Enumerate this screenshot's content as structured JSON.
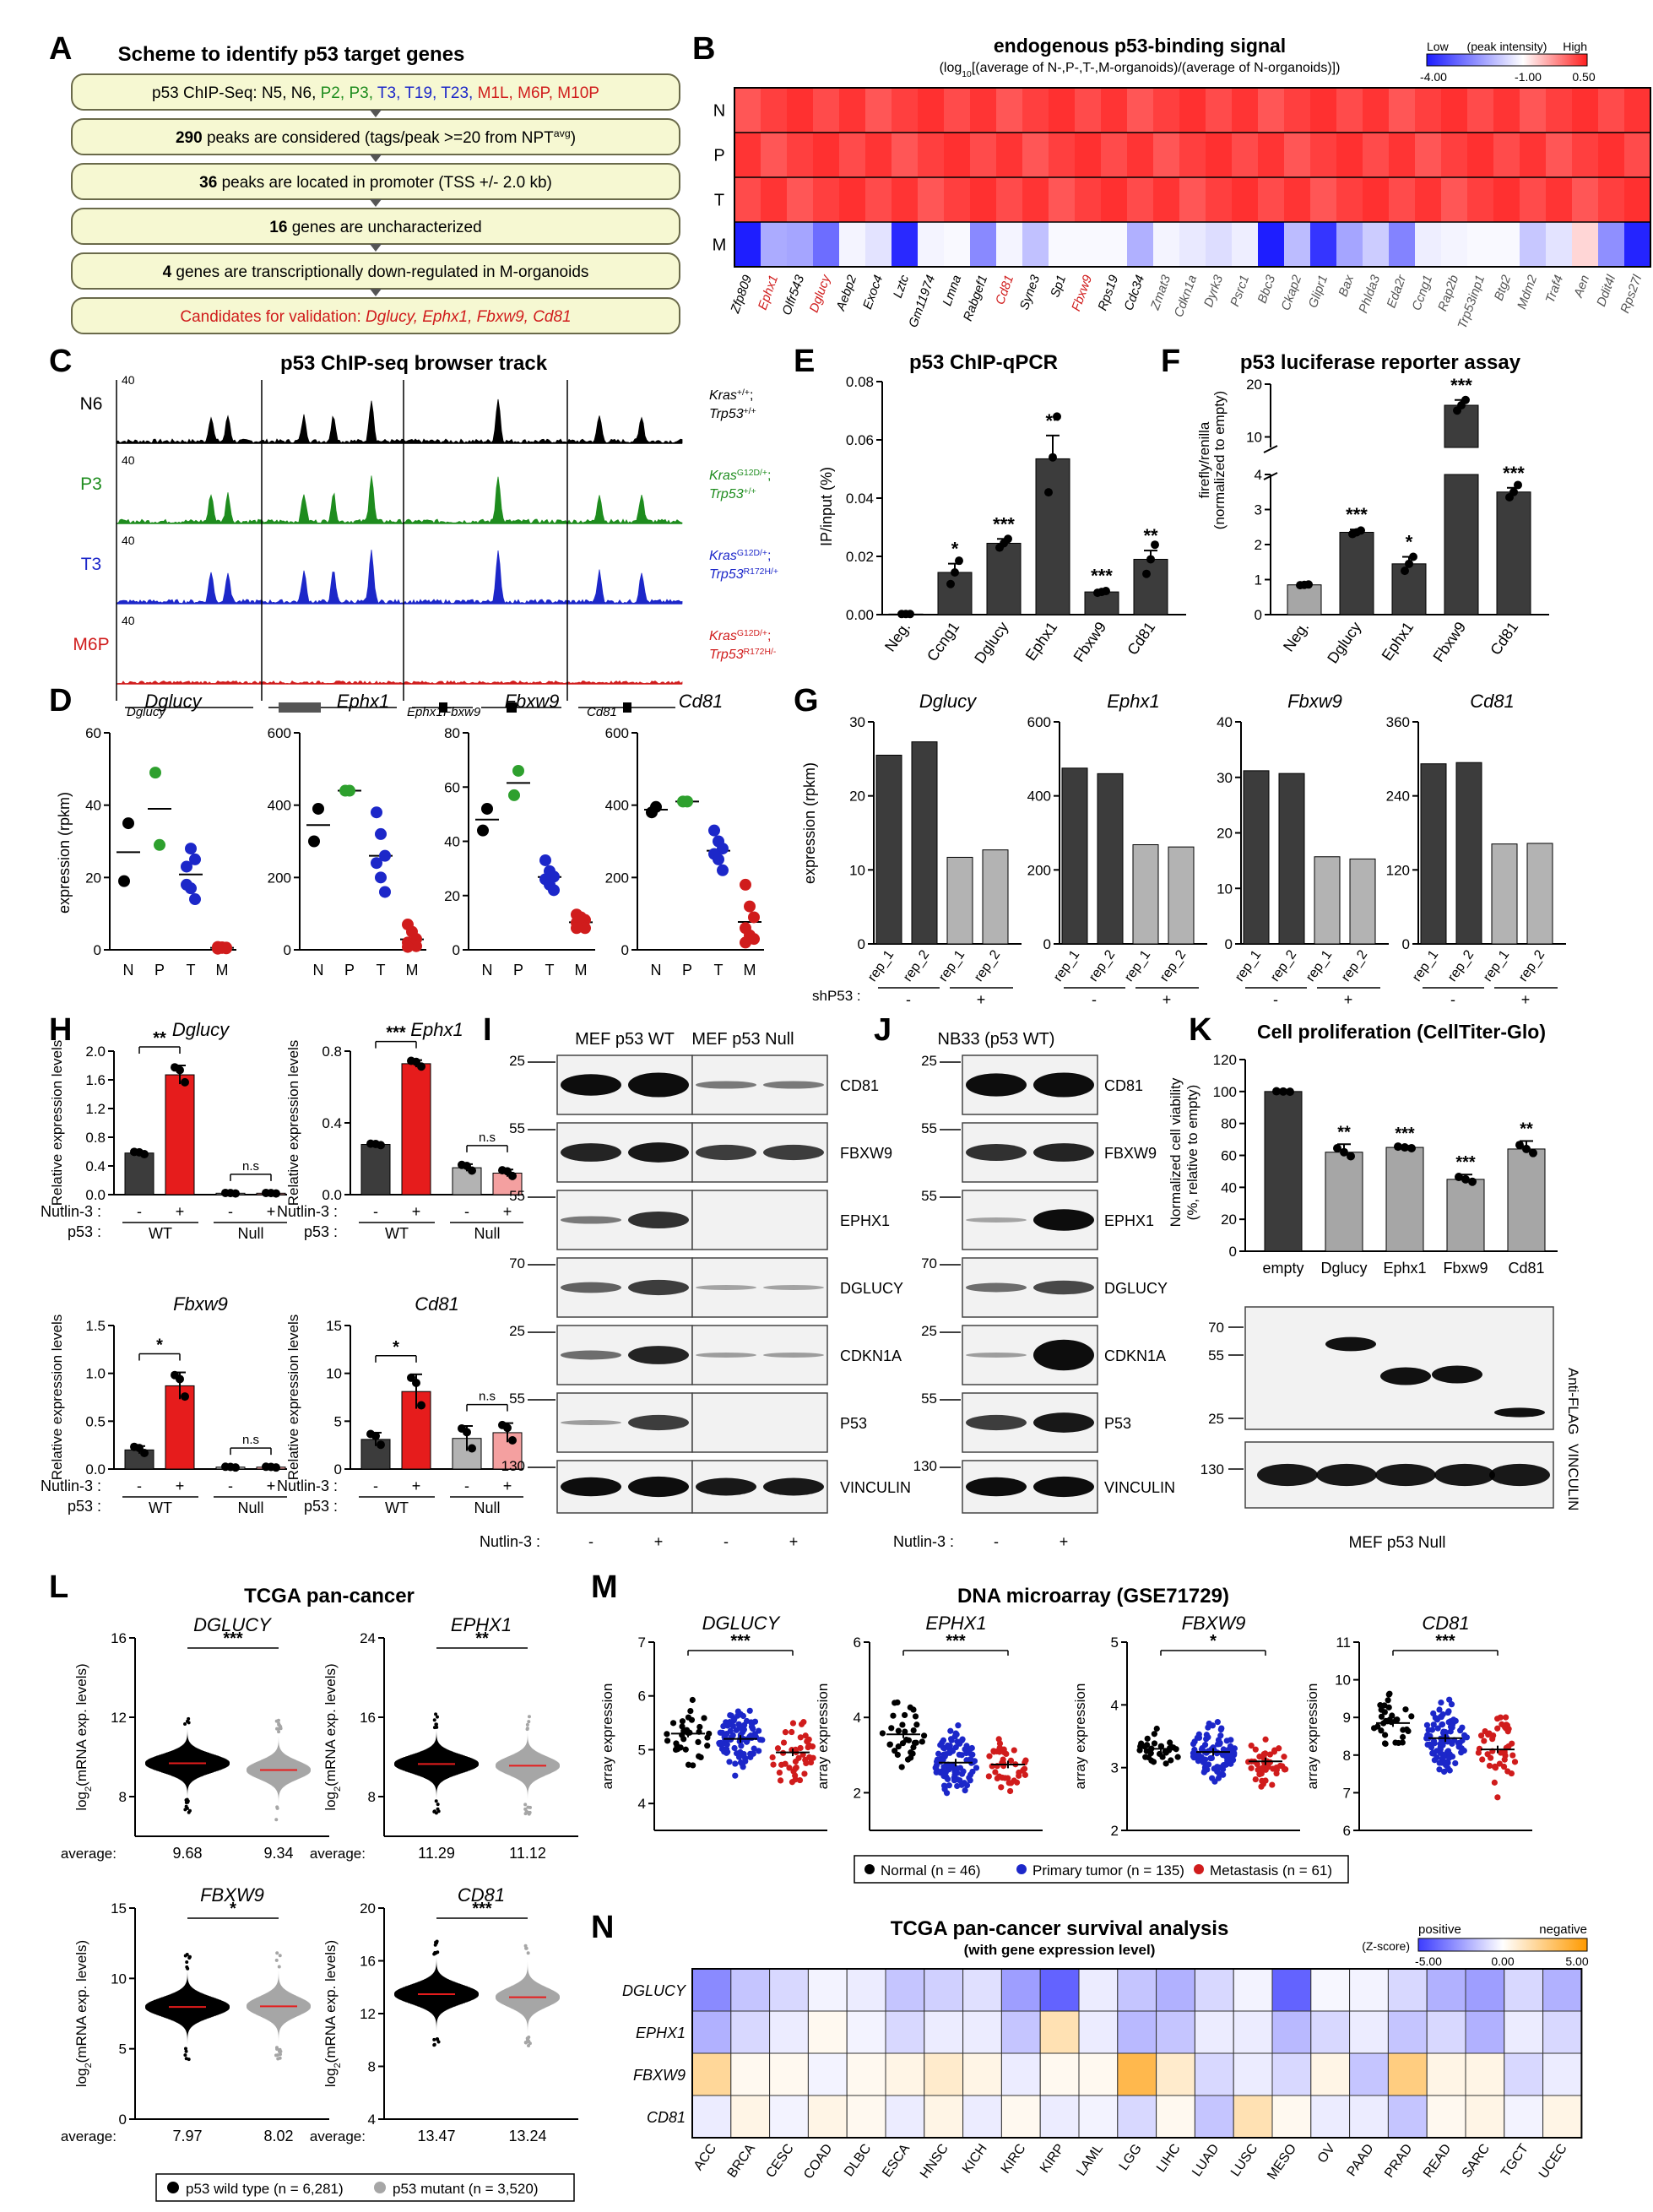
{
  "panelA": {
    "letter": "A",
    "title": "Scheme to identify p53 target genes",
    "row1": {
      "pre": "p53 ChIP-Seq: N5, N6,",
      "samples": [
        {
          "t": " P2,",
          "c": "#1e8c1e"
        },
        {
          "t": " P3,",
          "c": "#1e8c1e"
        },
        {
          "t": " T3,",
          "c": "#1c27c9"
        },
        {
          "t": " T19,",
          "c": "#1c27c9"
        },
        {
          "t": " T23,",
          "c": "#1c27c9"
        },
        {
          "t": " M1L,",
          "c": "#d01c1c"
        },
        {
          "t": " M6P,",
          "c": "#d01c1c"
        },
        {
          "t": " M10P",
          "c": "#d01c1c"
        }
      ]
    },
    "row2": {
      "num": "290",
      "text": " peaks are considered (tags/peak >=20 from NPT",
      "sup": "avg",
      "end": ")"
    },
    "row3": {
      "num": "36",
      "text": " peaks are located in promoter (TSS +/- 2.0 kb)"
    },
    "row4": {
      "num": "16",
      "text": " genes are uncharacterized"
    },
    "row5": {
      "num": "4",
      "text": " genes are transcriptionally down-regulated in M-organoids"
    },
    "row6": {
      "pre": "Candidates for validation: ",
      "genes": "Dglucy, Ephx1, Fbxw9, Cd81"
    }
  },
  "panelB": {
    "letter": "B",
    "title": "endogenous p53-binding signal",
    "subtitle_pre": "(log",
    "subtitle_sub": "10",
    "subtitle_post": "[(average of N-,P-,T-,M-organoids)/(average of N-organoids)])",
    "legend": {
      "low": "Low",
      "mid": "(peak intensity)",
      "high": "High",
      "ticks": [
        "-4.00",
        "-1.00",
        "0.50"
      ]
    },
    "rows": [
      "N",
      "P",
      "T",
      "M"
    ],
    "genes": [
      "Zfp809",
      "Ephx1",
      "Olfr543",
      "Dglucy",
      "Aebp2",
      "Exoc4",
      "Lztc",
      "Gm11974",
      "Lmna",
      "Rabgef1",
      "Cd81",
      "Syne3",
      "Sp1",
      "Fbxw9",
      "Rps19",
      "Cdc34",
      "Zmat3",
      "Cdkn1a",
      "Dyrk3",
      "Psrc1",
      "Bbc3",
      "Ckap2",
      "Glipr1",
      "Bax",
      "Phlda3",
      "Eda2r",
      "Ccng1",
      "Rap2b",
      "Trp53inp1",
      "Btg2",
      "Mdm2",
      "Traf4",
      "Aen",
      "Ddit4l",
      "Rps27l"
    ],
    "gene_colors": [
      "#000000",
      "#d01c1c",
      "#000000",
      "#d01c1c",
      "#000000",
      "#000000",
      "#000000",
      "#000000",
      "#000000",
      "#000000",
      "#d01c1c",
      "#000000",
      "#000000",
      "#d01c1c",
      "#000000",
      "#000000",
      "#555555",
      "#555555",
      "#555555",
      "#555555",
      "#555555",
      "#555555",
      "#555555",
      "#555555",
      "#555555",
      "#555555",
      "#555555",
      "#555555",
      "#555555",
      "#555555",
      "#555555",
      "#555555",
      "#555555",
      "#555555",
      "#555555"
    ],
    "M_values": [
      -4.0,
      -1.5,
      -1.6,
      -2.6,
      -0.2,
      -0.5,
      -3.8,
      -0.2,
      -0.1,
      -2.1,
      -0.2,
      -1.1,
      -0.1,
      -0.1,
      -0.1,
      -1.4,
      -0.2,
      -0.4,
      -0.6,
      -0.3,
      -4.0,
      -1.2,
      -3.6,
      -1.6,
      -0.9,
      -2.2,
      -0.3,
      -0.2,
      -0.1,
      -0.1,
      -1.0,
      -0.5,
      0.1,
      -2.0,
      -3.9
    ]
  },
  "panelC": {
    "letter": "C",
    "title": "p53 ChIP-seq browser track",
    "tracks": [
      {
        "name": "N6",
        "color": "#000000",
        "l1": "Kras",
        "l1s": "+/+",
        "l1e": ";",
        "l2": "Trp53",
        "l2s": "+/+"
      },
      {
        "name": "P3",
        "color": "#1e8c1e",
        "l1": "Kras",
        "l1s": "G12D/+",
        "l1e": ";",
        "l2": "Trp53",
        "l2s": "+/+"
      },
      {
        "name": "T3",
        "color": "#1c27c9",
        "l1": "Kras",
        "l1s": "G12D/+",
        "l1e": ";",
        "l2": "Trp53",
        "l2s": "R172H/+"
      },
      {
        "name": "M6P",
        "color": "#d01c1c",
        "l1": "Kras",
        "l1s": "G12D/+",
        "l1e": ";",
        "l2": "Trp53",
        "l2s": "R172H/-"
      }
    ],
    "scale": "40",
    "genes": [
      "Dglucy",
      "Ephx1",
      "Fbxw9",
      "Cd81"
    ]
  },
  "panelD": {
    "letter": "D",
    "ylabel": "expression (rpkm)",
    "groups": [
      "N",
      "P",
      "T",
      "M"
    ],
    "colors": [
      "#000000",
      "#2ea02e",
      "#1c27c9",
      "#d01c1c"
    ],
    "plots": [
      {
        "gene": "Dglucy",
        "ticks": [
          "0",
          "20",
          "40",
          "60"
        ],
        "max": 60,
        "pts": [
          [
            19,
            35
          ],
          [
            49,
            29
          ],
          [
            23,
            28,
            25,
            18,
            17,
            14
          ],
          [
            0.8,
            0.7,
            0.6,
            0.5,
            0.5,
            0.4,
            0.3
          ]
        ]
      },
      {
        "gene": "Ephx1",
        "ticks": [
          "0",
          "200",
          "400",
          "600"
        ],
        "max": 600,
        "pts": [
          [
            300,
            390
          ],
          [
            440,
            440
          ],
          [
            380,
            320,
            260,
            240,
            200,
            160
          ],
          [
            70,
            50,
            30,
            20,
            15,
            10,
            8
          ]
        ]
      },
      {
        "gene": "Fbxw9",
        "ticks": [
          "0",
          "20",
          "40",
          "60",
          "80"
        ],
        "max": 80,
        "pts": [
          [
            44,
            52
          ],
          [
            57,
            66
          ],
          [
            33,
            29,
            27,
            26,
            24,
            22
          ],
          [
            13,
            12,
            11,
            10,
            9,
            8,
            8
          ]
        ]
      },
      {
        "gene": "Cd81",
        "ticks": [
          "0",
          "200",
          "400",
          "600"
        ],
        "max": 600,
        "pts": [
          [
            380,
            395
          ],
          [
            410,
            410
          ],
          [
            330,
            300,
            280,
            265,
            250,
            220
          ],
          [
            180,
            120,
            90,
            60,
            40,
            30,
            20
          ]
        ]
      }
    ]
  },
  "panelE": {
    "letter": "E",
    "title": "p53 ChIP-qPCR",
    "ylabel": "IP/input (%)",
    "ticks": [
      "0.00",
      "0.02",
      "0.04",
      "0.06",
      "0.08"
    ],
    "categories": [
      "Neg.",
      "Ccng1",
      "Dglucy",
      "Ephx1",
      "Fbxw9",
      "Cd81"
    ],
    "values": [
      0.0002,
      0.0145,
      0.0245,
      0.0535,
      0.0078,
      0.019
    ],
    "errors": [
      0.0001,
      0.003,
      0.0015,
      0.008,
      0.0005,
      0.003
    ],
    "sig": [
      "",
      "*",
      "***",
      "**",
      "***",
      "**"
    ],
    "pts": [
      [
        0.0002,
        0.0002,
        0.0002
      ],
      [
        0.0105,
        0.0145,
        0.0185
      ],
      [
        0.023,
        0.0245,
        0.026
      ],
      [
        0.042,
        0.054,
        0.068
      ],
      [
        0.0075,
        0.0078,
        0.0081
      ],
      [
        0.014,
        0.019,
        0.024
      ]
    ]
  },
  "panelF": {
    "letter": "F",
    "title": "p53 luciferase reporter assay",
    "ylabel": "firefly/renilla",
    "ylabel2": "(normalized to empty)",
    "ticks_low": [
      "0",
      "1",
      "2",
      "3",
      "4"
    ],
    "ticks_high": [
      "10",
      "20"
    ],
    "categories": [
      "Neg.",
      "Dglucy",
      "Ephx1",
      "Fbxw9",
      "Cd81"
    ],
    "values": [
      0.85,
      2.35,
      1.45,
      16.0,
      3.5
    ],
    "errors": [
      0.02,
      0.08,
      0.2,
      1.0,
      0.12
    ],
    "sig": [
      "",
      "***",
      "*",
      "***",
      "***"
    ],
    "colors": [
      "#a6a6a6",
      "#3c3c3c",
      "#3c3c3c",
      "#3c3c3c",
      "#3c3c3c"
    ],
    "pts": [
      [
        0.84,
        0.85,
        0.86
      ],
      [
        2.3,
        2.35,
        2.4
      ],
      [
        1.25,
        1.45,
        1.65
      ],
      [
        15,
        16,
        17
      ],
      [
        3.35,
        3.5,
        3.7
      ]
    ]
  },
  "panelG": {
    "letter": "G",
    "ylabel": "expression (rpkm)",
    "xcats": [
      "rep_1",
      "rep_2",
      "rep_1",
      "rep_2"
    ],
    "shlabel": "shP53 :",
    "signs": [
      "-",
      "+"
    ],
    "plots": [
      {
        "gene": "Dglucy",
        "ticks": [
          "0",
          "10",
          "20",
          "30"
        ],
        "max": 30,
        "values": [
          25.5,
          27.3,
          11.7,
          12.7
        ]
      },
      {
        "gene": "Ephx1",
        "ticks": [
          "0",
          "200",
          "400",
          "600"
        ],
        "max": 600,
        "values": [
          475,
          460,
          268,
          262
        ]
      },
      {
        "gene": "Fbxw9",
        "ticks": [
          "0",
          "10",
          "20",
          "30",
          "40"
        ],
        "max": 40,
        "values": [
          31.2,
          30.7,
          15.7,
          15.3
        ]
      },
      {
        "gene": "Cd81",
        "ticks": [
          "0",
          "120",
          "240",
          "360"
        ],
        "max": 360,
        "values": [
          292,
          294,
          162,
          163
        ]
      }
    ]
  },
  "panelH": {
    "letter": "H",
    "ylabel": "Relative expression levels",
    "nutlin": "Nutlin-3 :",
    "p53": "p53 :",
    "signs": [
      "-",
      "+",
      "-",
      "+"
    ],
    "geno": [
      "WT",
      "Null"
    ],
    "ns": "n.s",
    "plots": [
      {
        "gene": "Dglucy",
        "ticks": [
          "0.0",
          "0.4",
          "0.8",
          "1.2",
          "1.6",
          "2.0"
        ],
        "max": 2.0,
        "values": [
          0.58,
          1.67,
          0.02,
          0.02
        ],
        "errors": [
          0.02,
          0.13,
          0.005,
          0.005
        ],
        "sig": "**"
      },
      {
        "gene": "Ephx1",
        "ticks": [
          "0.0",
          "0.4",
          "0.8"
        ],
        "max": 0.8,
        "values": [
          0.28,
          0.73,
          0.15,
          0.12
        ],
        "errors": [
          0.005,
          0.02,
          0.02,
          0.02
        ],
        "sig": "***"
      },
      {
        "gene": "Fbxw9",
        "ticks": [
          "0.0",
          "0.5",
          "1.0",
          "1.5"
        ],
        "max": 1.5,
        "values": [
          0.2,
          0.87,
          0.02,
          0.02
        ],
        "errors": [
          0.04,
          0.14,
          0.005,
          0.005
        ],
        "sig": "*"
      },
      {
        "gene": "Cd81",
        "ticks": [
          "0",
          "5",
          "10",
          "15"
        ],
        "max": 15,
        "values": [
          3.1,
          8.1,
          3.2,
          3.8
        ],
        "errors": [
          0.7,
          1.8,
          1.3,
          1.0
        ],
        "sig": "*"
      }
    ]
  },
  "panelI": {
    "letter": "I",
    "left": "MEF p53 WT",
    "right": "MEF p53 Null",
    "mw": [
      "25",
      "55",
      "55",
      "70",
      "25",
      "55",
      "130"
    ],
    "bands": [
      "CD81",
      "FBXW9",
      "EPHX1",
      "DGLUCY",
      "CDKN1A",
      "P53",
      "VINCULIN"
    ],
    "nutlin": "Nutlin-3 :",
    "signs": [
      "-",
      "+",
      "-",
      "+"
    ]
  },
  "panelJ": {
    "letter": "J",
    "title": "NB33 (p53 WT)",
    "mw": [
      "25",
      "55",
      "55",
      "70",
      "25",
      "55",
      "130"
    ],
    "bands": [
      "CD81",
      "FBXW9",
      "EPHX1",
      "DGLUCY",
      "CDKN1A",
      "P53",
      "VINCULIN"
    ],
    "nutlin": "Nutlin-3 :",
    "signs": [
      "-",
      "+"
    ]
  },
  "panelK": {
    "letter": "K",
    "title": "Cell proliferation (CellTiter-Glo)",
    "ylabel": "Normalized cell viability",
    "ylabel2": "(%, relative to empty)",
    "ticks": [
      "0",
      "20",
      "40",
      "60",
      "80",
      "100",
      "120"
    ],
    "categories": [
      "empty",
      "Dglucy",
      "Ephx1",
      "Fbxw9",
      "Cd81"
    ],
    "values": [
      100,
      62,
      65,
      45,
      64
    ],
    "errors": [
      0.3,
      5,
      1,
      3,
      5
    ],
    "sig": [
      "",
      "**",
      "***",
      "***",
      "**"
    ],
    "blot_mw": [
      "70",
      "55",
      "25",
      "130"
    ],
    "antiflag": "Anti-FLAG",
    "vinculin": "VINCULIN",
    "caption": "MEF p53 Null"
  },
  "panelL": {
    "letter": "L",
    "title": "TCGA pan-cancer",
    "ylabel": "log",
    "ylabel_sub": "2",
    "ylabel_post": "(mRNA exp. levels)",
    "avg": "average:",
    "plots": [
      {
        "gene": "DGLUCY",
        "ticks": [
          "8",
          "12",
          "16"
        ],
        "range": [
          6,
          16
        ],
        "sig": "***",
        "avgs": [
          "9.68",
          "9.34"
        ],
        "med": [
          9.68,
          9.34
        ]
      },
      {
        "gene": "EPHX1",
        "ticks": [
          "8",
          "16",
          "24"
        ],
        "range": [
          4,
          24
        ],
        "sig": "**",
        "avgs": [
          "11.29",
          "11.12"
        ],
        "med": [
          11.29,
          11.12
        ]
      },
      {
        "gene": "FBXW9",
        "ticks": [
          "0",
          "5",
          "10",
          "15"
        ],
        "range": [
          0,
          15
        ],
        "sig": "*",
        "avgs": [
          "7.97",
          "8.02"
        ],
        "med": [
          7.97,
          8.02
        ]
      },
      {
        "gene": "CD81",
        "ticks": [
          "4",
          "8",
          "12",
          "16",
          "20"
        ],
        "range": [
          4,
          20
        ],
        "sig": "***",
        "avgs": [
          "13.47",
          "13.24"
        ],
        "med": [
          13.47,
          13.24
        ]
      }
    ],
    "legend": [
      {
        "label": "p53 wild type (n = 6,281)",
        "color": "#000000"
      },
      {
        "label": "p53 mutant (n = 3,520)",
        "color": "#a6a6a6"
      }
    ]
  },
  "panelM": {
    "letter": "M",
    "title": "DNA microarray (GSE71729)",
    "ylabel": "array expression",
    "plots": [
      {
        "gene": "DGLUCY",
        "ticks": [
          "4",
          "5",
          "6",
          "7"
        ],
        "range": [
          3.5,
          7
        ],
        "sig": "***",
        "meds": [
          5.3,
          5.2,
          4.95
        ],
        "spread": [
          0.45,
          0.45,
          0.5
        ]
      },
      {
        "gene": "EPHX1",
        "ticks": [
          "2",
          "4",
          "6"
        ],
        "range": [
          1,
          6
        ],
        "sig": "***",
        "meds": [
          3.55,
          2.8,
          2.75
        ],
        "spread": [
          0.7,
          0.6,
          0.6
        ]
      },
      {
        "gene": "FBXW9",
        "ticks": [
          "2",
          "3",
          "4",
          "5"
        ],
        "range": [
          2,
          5
        ],
        "sig": "*",
        "meds": [
          3.3,
          3.25,
          3.1
        ],
        "spread": [
          0.2,
          0.3,
          0.3
        ]
      },
      {
        "gene": "CD81",
        "ticks": [
          "6",
          "7",
          "8",
          "9",
          "10",
          "11"
        ],
        "range": [
          6,
          11
        ],
        "sig": "***",
        "meds": [
          8.85,
          8.45,
          8.15
        ],
        "spread": [
          0.5,
          0.6,
          0.7
        ]
      }
    ],
    "legend": [
      {
        "label": "Normal (n = 46)",
        "color": "#000000"
      },
      {
        "label": "Primary tumor (n = 135)",
        "color": "#1c27c9"
      },
      {
        "label": "Metastasis (n = 61)",
        "color": "#d01c1c"
      }
    ]
  },
  "panelN": {
    "letter": "N",
    "title": "TCGA pan-cancer survival analysis",
    "subtitle": "(with gene expression level)",
    "legend": {
      "pos": "positive",
      "neg": "negative",
      "unit": "(Z-score)",
      "ticks": [
        "-5.00",
        "0.00",
        "5.00"
      ]
    },
    "rows": [
      "DGLUCY",
      "EPHX1",
      "FBXW9",
      "CD81"
    ],
    "cols": [
      "ACC",
      "BRCA",
      "CESC",
      "COAD",
      "DLBC",
      "ESCA",
      "HNSC",
      "KICH",
      "KIRC",
      "KIRP",
      "LAML",
      "LGG",
      "LIHC",
      "LUAD",
      "LUSC",
      "MESO",
      "OV",
      "PAAD",
      "PRAD",
      "READ",
      "SARC",
      "TGCT",
      "UCEC"
    ],
    "values": [
      [
        -3.0,
        -1.5,
        -1.0,
        -0.3,
        -0.5,
        -1.5,
        -1.2,
        -0.8,
        -2.5,
        -4.0,
        -0.5,
        -1.5,
        -2.0,
        -1.0,
        -0.3,
        -4.0,
        -0.2,
        -0.3,
        -1.0,
        -2.0,
        -2.5,
        -1.0,
        -2.0
      ],
      [
        -2.0,
        -1.0,
        -0.5,
        0.3,
        -0.3,
        -1.0,
        -0.5,
        -0.5,
        -1.5,
        1.5,
        -0.5,
        -1.8,
        -1.5,
        -0.5,
        -0.5,
        -1.8,
        -1.0,
        -0.5,
        -1.5,
        -1.0,
        -2.0,
        -0.5,
        -1.0
      ],
      [
        2.0,
        0.3,
        0.3,
        -0.3,
        0.3,
        0.5,
        1.0,
        0.5,
        -0.5,
        0.3,
        0.3,
        3.5,
        1.0,
        -1.0,
        -0.5,
        -1.0,
        0.5,
        -1.5,
        2.5,
        0.5,
        0.5,
        -1.0,
        -0.5
      ],
      [
        -0.5,
        0.5,
        -0.3,
        0.5,
        0.3,
        -0.5,
        0.5,
        -0.5,
        0.3,
        -0.5,
        -0.3,
        -1.0,
        0.3,
        -1.5,
        1.5,
        0.3,
        -0.5,
        -0.5,
        -1.5,
        0.3,
        0.5,
        -0.3,
        0.5
      ]
    ]
  }
}
